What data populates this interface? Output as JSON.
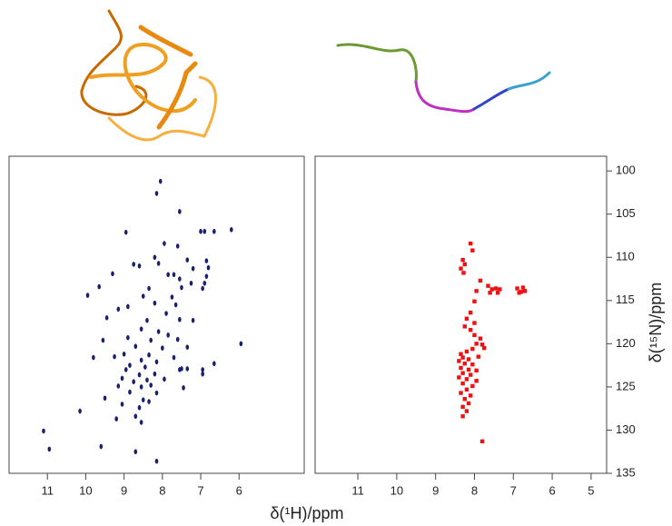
{
  "chart_data": [
    {
      "type": "scatter",
      "color": "#1a1f6e",
      "marker": "ellipse",
      "xlim": [
        12.0,
        4.3
      ],
      "ylim": [
        98.3,
        135
      ],
      "xticks": [
        11,
        10,
        9,
        8,
        7,
        6
      ],
      "xlabel": "δ(¹H)/ppm",
      "x": [
        8.05,
        8.15,
        7.55,
        7.0,
        6.9,
        6.65,
        6.2,
        8.95,
        7.95,
        7.6,
        8.2,
        8.1,
        8.75,
        8.6,
        7.35,
        6.85,
        6.8,
        7.2,
        9.3,
        7.85,
        7.7,
        6.85,
        7.55,
        6.9,
        7.25,
        7.5,
        6.95,
        9.65,
        8.35,
        9.95,
        8.5,
        7.75,
        8.2,
        7.65,
        8.9,
        9.15,
        7.9,
        9.45,
        8.4,
        7.2,
        7.55,
        8.55,
        8.1,
        7.85,
        8.9,
        8.3,
        9.55,
        7.6,
        8.7,
        5.95,
        8.0,
        7.35,
        9.0,
        8.35,
        9.8,
        9.25,
        7.7,
        8.55,
        8.15,
        6.65,
        8.85,
        8.45,
        7.5,
        7.35,
        8.95,
        7.55,
        6.95,
        6.95,
        8.2,
        8.6,
        9.05,
        8.4,
        7.95,
        8.75,
        8.3,
        9.15,
        8.55,
        7.45,
        8.85,
        8.15,
        9.5,
        8.5,
        8.35,
        9.05,
        8.6,
        10.15,
        8.7,
        9.2,
        8.55,
        11.1,
        9.6,
        10.95,
        8.7,
        8.15
      ],
      "values": [
        101.2,
        102.6,
        104.7,
        107.0,
        107.0,
        107.0,
        106.8,
        107.1,
        108.4,
        108.7,
        110.0,
        110.7,
        110.8,
        111.0,
        110.3,
        110.4,
        111.2,
        111.3,
        111.9,
        112.0,
        112.0,
        112.2,
        112.5,
        113.0,
        113.0,
        113.5,
        113.6,
        113.4,
        113.6,
        114.4,
        114.5,
        114.6,
        115.3,
        115.5,
        115.7,
        116.0,
        116.5,
        117.0,
        117.3,
        117.3,
        117.2,
        118.3,
        118.6,
        119.0,
        119.3,
        119.6,
        119.6,
        119.5,
        120.3,
        120.0,
        120.5,
        120.4,
        121.2,
        121.3,
        121.6,
        121.5,
        121.6,
        121.9,
        122.1,
        122.3,
        122.5,
        122.7,
        122.9,
        122.9,
        123.0,
        123.0,
        123.0,
        123.5,
        123.5,
        123.6,
        124.0,
        124.2,
        124.1,
        124.4,
        124.8,
        124.9,
        125.0,
        125.1,
        125.6,
        125.7,
        126.3,
        126.5,
        126.7,
        127.0,
        127.4,
        127.8,
        128.4,
        128.7,
        129.1,
        130.1,
        131.9,
        132.2,
        132.5,
        133.6
      ]
    },
    {
      "type": "scatter",
      "color": "#ee1111",
      "marker": "square",
      "xlim": [
        12.1,
        4.6
      ],
      "ylim": [
        98.3,
        135
      ],
      "xticks": [
        11,
        10,
        9,
        8,
        7,
        6,
        5
      ],
      "yticks": [
        100,
        105,
        110,
        115,
        120,
        125,
        130,
        135
      ],
      "ylabel": "δ(¹⁵N)/ppm",
      "x": [
        8.1,
        8.05,
        8.3,
        8.25,
        8.35,
        8.28,
        7.85,
        7.65,
        7.55,
        7.45,
        7.4,
        7.6,
        7.35,
        6.9,
        6.8,
        6.75,
        6.7,
        6.85,
        7.95,
        8.0,
        8.1,
        8.2,
        8.0,
        8.25,
        8.1,
        8.0,
        7.85,
        7.8,
        7.95,
        7.75,
        8.05,
        8.2,
        8.35,
        8.3,
        8.15,
        7.9,
        8.4,
        8.25,
        8.05,
        8.35,
        8.15,
        7.95,
        8.3,
        8.1,
        8.4,
        8.2,
        7.95,
        8.3,
        8.05,
        8.2,
        8.35,
        8.1,
        8.25,
        8.15,
        8.3,
        8.2,
        8.3,
        7.8
      ],
      "values": [
        108.4,
        109.2,
        110.3,
        110.8,
        111.3,
        111.8,
        112.7,
        113.3,
        113.7,
        113.6,
        114.1,
        114.1,
        113.7,
        113.6,
        114.0,
        113.5,
        113.9,
        114.1,
        113.9,
        115.1,
        116.4,
        117.1,
        117.6,
        118.0,
        118.4,
        119.0,
        119.4,
        120.1,
        120.0,
        120.5,
        120.6,
        120.9,
        121.2,
        121.6,
        121.8,
        121.5,
        122.0,
        122.3,
        122.4,
        122.8,
        123.0,
        123.1,
        123.4,
        123.6,
        123.9,
        124.1,
        124.3,
        124.6,
        124.9,
        125.3,
        125.7,
        126.0,
        126.4,
        126.9,
        127.3,
        127.8,
        128.4,
        131.3
      ]
    }
  ]
}
